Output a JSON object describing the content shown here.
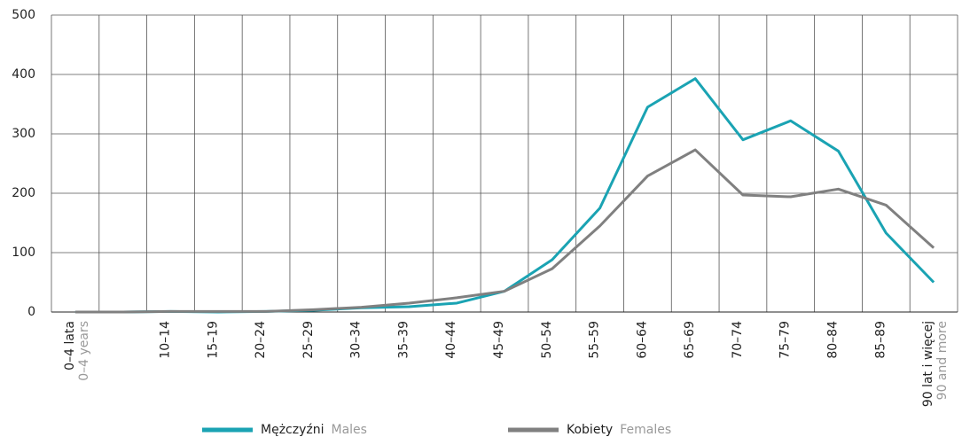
{
  "chart_data": {
    "type": "line",
    "categories": [
      "0–4 lata",
      null,
      "10–14",
      "15–19",
      "20–24",
      "25–29",
      "30–34",
      "35–39",
      "40–44",
      "45–49",
      "50–54",
      "55–59",
      "60–64",
      "65–69",
      "70–74",
      "75–79",
      "80–84",
      "85–89",
      "90 lat i więcej"
    ],
    "categories_en": [
      "0–4 years",
      null,
      null,
      null,
      null,
      null,
      null,
      null,
      null,
      null,
      null,
      null,
      null,
      null,
      null,
      null,
      null,
      null,
      "90 and more"
    ],
    "series": [
      {
        "name": "Mężczyźni",
        "name_en": "Males",
        "color": "#1aa3b3",
        "values": [
          0,
          0,
          1,
          0,
          1,
          3,
          7,
          9,
          15,
          35,
          88,
          175,
          345,
          393,
          290,
          322,
          271,
          133,
          50
        ]
      },
      {
        "name": "Kobiety",
        "name_en": "Females",
        "color": "#808080",
        "values": [
          0,
          0,
          1,
          1,
          1,
          4,
          8,
          15,
          24,
          35,
          73,
          145,
          229,
          273,
          197,
          194,
          207,
          180,
          108
        ]
      }
    ],
    "ylim": [
      0,
      500
    ],
    "yticks": [
      0,
      100,
      200,
      300,
      400,
      500
    ],
    "grid": true
  }
}
